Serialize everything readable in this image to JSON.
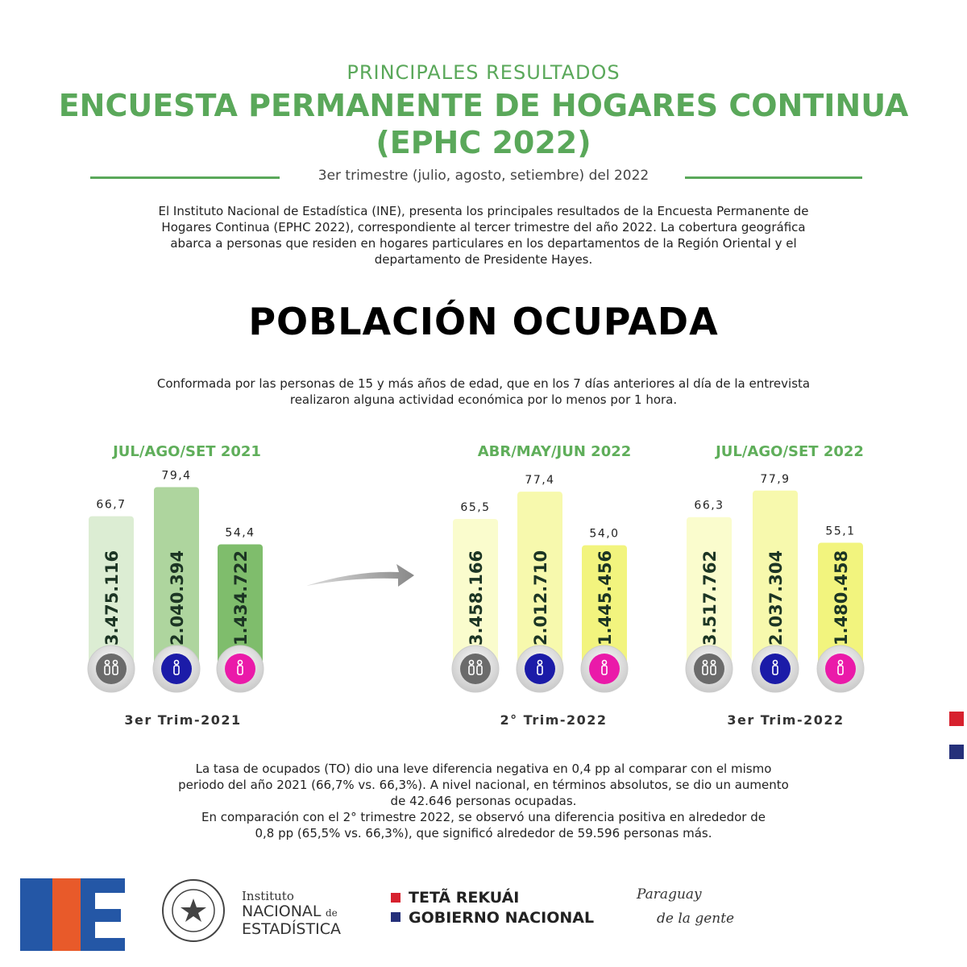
{
  "header": {
    "kicker": "PRINCIPALES RESULTADOS",
    "title_lines": [
      "ENCUESTA PERMANENTE DE HOGARES CONTINUA",
      "(EPHC 2022)"
    ],
    "period": "3er trimestre  (julio, agosto, setiembre) del 2022",
    "intro": [
      "El Instituto Nacional de Estadística (INE), presenta los principales resultados de la Encuesta Permanente de",
      "Hogares Continua (EPHC 2022), correspondiente al tercer trimestre del año 2022.  La cobertura geográfica",
      "abarca a personas que residen en hogares particulares en los departamentos de la Región Oriental y el",
      "departamento de Presidente Hayes."
    ]
  },
  "section": {
    "title": "POBLACIÓN OCUPADA",
    "definition": [
      "Conformada por las personas de 15 y más años de edad, que en los 7 días anteriores al día de la entrevista",
      "realizaron alguna actividad económica por lo menos por 1 hora."
    ]
  },
  "chart_data": [
    {
      "type": "bar",
      "title": "JUL/AGO/SET 2021",
      "x_label": "3er Trim-2021",
      "categories": [
        null,
        null,
        null
      ],
      "values": [
        66.7,
        79.4,
        54.4
      ],
      "value_labels": [
        "66,7",
        "79,4",
        "54,4"
      ],
      "counts": [
        3475116,
        2040394,
        1434722
      ],
      "count_labels": [
        "3.475.116",
        "2.040.394",
        "1.434.722"
      ],
      "colors": [
        "#dcedd3",
        "#aed59e",
        "#7fbd6c"
      ]
    },
    {
      "type": "bar",
      "title": "ABR/MAY/JUN 2022",
      "x_label": "2° Trim-2022",
      "categories": [
        null,
        null,
        null
      ],
      "values": [
        65.5,
        77.4,
        54.0
      ],
      "value_labels": [
        "65,5",
        "77,4",
        "54,0"
      ],
      "counts": [
        3458166,
        2012710,
        1445456
      ],
      "count_labels": [
        "3.458.166",
        "2.012.710",
        "1.445.456"
      ],
      "colors": [
        "#fafccd",
        "#f7f9ad",
        "#f2f47e"
      ]
    },
    {
      "type": "bar",
      "title": "JUL/AGO/SET 2022",
      "x_label": "3er Trim-2022",
      "categories": [
        null,
        null,
        null
      ],
      "values": [
        66.3,
        77.9,
        55.1
      ],
      "value_labels": [
        "66,3",
        "77,9",
        "55,1"
      ],
      "counts": [
        3517762,
        2037304,
        1480458
      ],
      "count_labels": [
        "3.517.762",
        "2.037.304",
        "1.480.458"
      ],
      "colors": [
        "#fafccd",
        "#f7f9ad",
        "#f2f47e"
      ]
    }
  ],
  "summary": [
    "La tasa de ocupados (TO) dio una leve diferencia negativa en 0,4 pp al comparar con el mismo",
    "periodo del año 2021 (66,7% vs. 66,3%). A nivel nacional, en términos absolutos, se dio un aumento",
    "de 42.646 personas ocupadas.",
    "En comparación con el 2° trimestre 2022, se observó una diferencia positiva en alrededor de",
    "0,8 pp (65,5% vs. 66,3%), que significó alrededor de 59.596 personas más."
  ],
  "footer": {
    "ine_small": "Instituto",
    "ine_name": [
      "NACIONAL",
      "de",
      "ESTADÍSTICA"
    ],
    "gov": [
      "TETÃ REKUÁI",
      "GOBIERNO NACIONAL"
    ],
    "slogan": [
      "Paraguay",
      "de la gente"
    ]
  }
}
